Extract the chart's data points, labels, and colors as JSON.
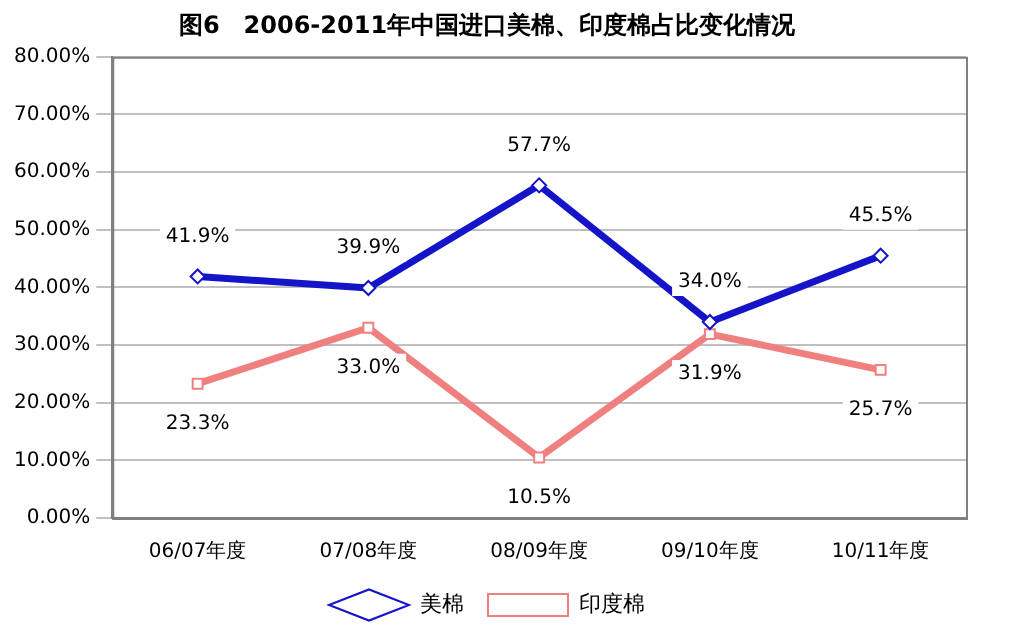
{
  "chart_data": {
    "type": "line",
    "title": "图6　2006-2011年中国进口美棉、印度棉占比变化情况",
    "categories": [
      "06/07年度",
      "07/08年度",
      "08/09年度",
      "09/10年度",
      "10/11年度"
    ],
    "series": [
      {
        "name": "美棉",
        "color": "#1414c8",
        "marker": "diamond",
        "values": [
          41.9,
          39.9,
          57.7,
          34.0,
          45.5
        ],
        "value_labels": [
          "41.9%",
          "39.9%",
          "57.7%",
          "34.0%",
          "45.5%"
        ]
      },
      {
        "name": "印度棉",
        "color": "#f08080",
        "marker": "square",
        "values": [
          23.3,
          33.0,
          10.5,
          31.9,
          25.7
        ],
        "value_labels": [
          "23.3%",
          "33.0%",
          "10.5%",
          "31.9%",
          "25.7%"
        ]
      }
    ],
    "ylim": [
      0,
      80
    ],
    "yticks": [
      {
        "value": 0,
        "label": "0.00%"
      },
      {
        "value": 10,
        "label": "10.00%"
      },
      {
        "value": 20,
        "label": "20.00%"
      },
      {
        "value": 30,
        "label": "30.00%"
      },
      {
        "value": 40,
        "label": "40.00%"
      },
      {
        "value": 50,
        "label": "50.00%"
      },
      {
        "value": 60,
        "label": "60.00%"
      },
      {
        "value": 70,
        "label": "70.00%"
      },
      {
        "value": 80,
        "label": "80.00%"
      }
    ],
    "grid": "y",
    "legend": "bottom",
    "line_style": "solid"
  }
}
